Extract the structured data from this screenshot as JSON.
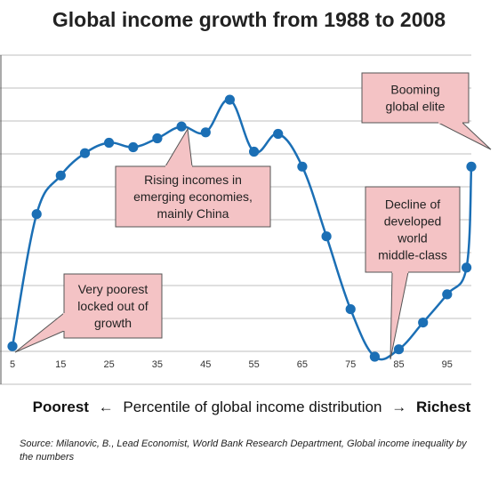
{
  "chart_data": {
    "type": "line",
    "title": "Global income growth from 1988 to 2008",
    "xlabel": {
      "left": "Poorest",
      "left_arrow": "←",
      "middle": "Percentile of global income distribution",
      "right_arrow": "→",
      "right": "Richest"
    },
    "ylabel": "",
    "x_ticks": [
      "5",
      "15",
      "25",
      "35",
      "45",
      "55",
      "65",
      "75",
      "85",
      "95"
    ],
    "xlim": [
      5,
      100
    ],
    "ylim": [
      0,
      1
    ],
    "series": [
      {
        "name": "",
        "color": "#1b6fb5",
        "x": [
          5,
          10,
          15,
          20,
          25,
          30,
          35,
          40,
          45,
          50,
          55,
          60,
          65,
          70,
          75,
          80,
          85,
          90,
          95,
          99,
          100
        ],
        "y": [
          0.02,
          0.465,
          0.595,
          0.67,
          0.705,
          0.69,
          0.72,
          0.76,
          0.74,
          0.85,
          0.675,
          0.735,
          0.625,
          0.39,
          0.145,
          -0.015,
          0.01,
          0.1,
          0.195,
          0.285,
          0.625
        ]
      }
    ],
    "annotations": [
      {
        "id": "rising",
        "lines": [
          "Rising incomes in",
          "emerging economies,",
          "mainly China"
        ]
      },
      {
        "id": "booming",
        "lines": [
          "Booming",
          "global elite"
        ]
      },
      {
        "id": "decline",
        "lines": [
          "Decline of",
          "developed",
          "world",
          "middle-class"
        ]
      },
      {
        "id": "poorest",
        "lines": [
          "Very poorest",
          "locked out of",
          "growth"
        ]
      }
    ],
    "grid": true,
    "legend": "none",
    "colors": {
      "line": "#1b6fb5",
      "grid": "#bfbfbf",
      "callout_fill": "#f4c3c5",
      "callout_stroke": "#555555"
    }
  },
  "source": "Source: Milanovic, B., Lead Economist, World Bank Research Department, Global income inequality by the numbers"
}
